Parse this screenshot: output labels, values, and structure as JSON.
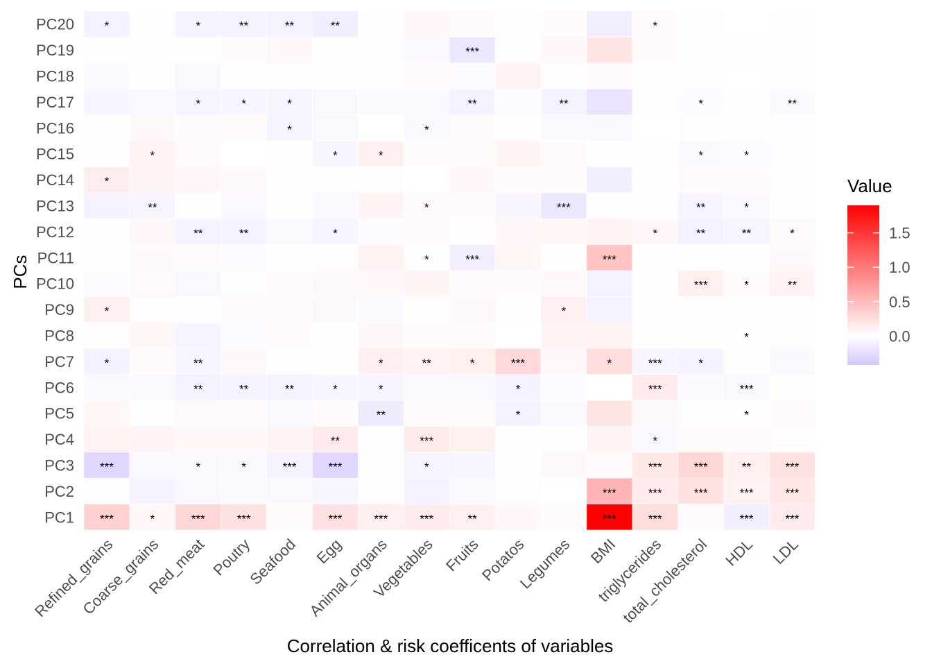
{
  "chart_data": {
    "type": "heatmap",
    "title": "",
    "xlabel": "Correlation & risk coefficents of variables",
    "ylabel": "PCs",
    "x_categories": [
      "Refined_grains",
      "Coarse_grains",
      "Red_meat",
      "Poutry",
      "Seafood",
      "Egg",
      "Animal_organs",
      "Vegetables",
      "Fruits",
      "Potatos",
      "Legumes",
      "BMI",
      "triglycerides",
      "total_cholesterol",
      "HDL",
      "LDL"
    ],
    "y_categories": [
      "PC1",
      "PC2",
      "PC3",
      "PC4",
      "PC5",
      "PC6",
      "PC7",
      "PC8",
      "PC9",
      "PC10",
      "PC11",
      "PC12",
      "PC13",
      "PC14",
      "PC15",
      "PC16",
      "PC17",
      "PC18",
      "PC19",
      "PC20"
    ],
    "rows": [
      {
        "pc": "PC1",
        "values": [
          0.35,
          0.07,
          0.3,
          0.22,
          0.04,
          0.22,
          0.12,
          0.15,
          0.12,
          0.06,
          0.03,
          1.9,
          0.25,
          0.03,
          -0.12,
          0.15
        ],
        "stars": [
          "***",
          "*",
          "***",
          "***",
          "",
          "***",
          "***",
          "***",
          "**",
          "",
          "",
          "***",
          "***",
          "",
          "***",
          "***"
        ]
      },
      {
        "pc": "PC2",
        "values": [
          -0.02,
          -0.09,
          -0.06,
          -0.04,
          -0.05,
          -0.07,
          -0.02,
          -0.1,
          -0.06,
          -0.02,
          0.0,
          0.55,
          0.15,
          0.22,
          0.1,
          0.18
        ],
        "stars": [
          "",
          "",
          "",
          "",
          "",
          "",
          "",
          "",
          "",
          "",
          "",
          "***",
          "***",
          "***",
          "***",
          "***"
        ]
      },
      {
        "pc": "PC3",
        "values": [
          -0.3,
          -0.06,
          -0.05,
          -0.05,
          -0.1,
          -0.3,
          0.02,
          -0.08,
          -0.08,
          0.01,
          0.05,
          0.04,
          0.17,
          0.3,
          0.12,
          0.22
        ],
        "stars": [
          "***",
          "",
          "*",
          "*",
          "***",
          "***",
          "",
          "*",
          "",
          "",
          "",
          "",
          "***",
          "***",
          "**",
          "***"
        ]
      },
      {
        "pc": "PC4",
        "values": [
          0.1,
          0.08,
          0.06,
          0.06,
          0.08,
          0.15,
          -0.02,
          0.15,
          0.11,
          0.01,
          0.02,
          0.1,
          -0.06,
          0.04,
          0.03,
          0.02
        ],
        "stars": [
          "",
          "",
          "",
          "",
          "",
          "**",
          "",
          "***",
          "",
          "",
          "",
          "",
          "*",
          "",
          "",
          ""
        ]
      },
      {
        "pc": "PC5",
        "values": [
          0.07,
          -0.02,
          0.04,
          0.04,
          -0.05,
          0.03,
          -0.15,
          0.03,
          0.03,
          -0.1,
          -0.04,
          0.2,
          0.05,
          0.02,
          -0.02,
          0.03
        ],
        "stars": [
          "",
          "",
          "",
          "",
          "",
          "",
          "**",
          "",
          "",
          "*",
          "",
          "",
          "",
          "",
          "*",
          ""
        ]
      },
      {
        "pc": "PC6",
        "values": [
          -0.04,
          -0.04,
          -0.1,
          -0.09,
          -0.1,
          -0.07,
          -0.08,
          -0.06,
          -0.06,
          -0.1,
          -0.03,
          0.0,
          0.15,
          -0.04,
          -0.05,
          0.02
        ],
        "stars": [
          "",
          "",
          "**",
          "**",
          "**",
          "*",
          "*",
          "",
          "",
          "*",
          "",
          "",
          "***",
          "",
          "***",
          ""
        ]
      },
      {
        "pc": "PC7",
        "values": [
          -0.1,
          0.03,
          -0.08,
          0.05,
          -0.02,
          -0.01,
          0.12,
          0.1,
          0.12,
          0.28,
          0.05,
          0.25,
          -0.07,
          -0.09,
          0.01,
          -0.04
        ],
        "stars": [
          "*",
          "",
          "**",
          "",
          "",
          "",
          "*",
          "**",
          "*",
          "***",
          "",
          "*",
          "***",
          "*",
          "",
          ""
        ]
      },
      {
        "pc": "PC8",
        "values": [
          0.02,
          0.07,
          -0.08,
          -0.03,
          0.03,
          -0.02,
          0.06,
          0.03,
          0.03,
          0.0,
          0.08,
          0.09,
          0.02,
          -0.01,
          0.02,
          0.02
        ],
        "stars": [
          "",
          "",
          "",
          "",
          "",
          "",
          "",
          "",
          "",
          "",
          "",
          "",
          "",
          "",
          "*",
          ""
        ]
      },
      {
        "pc": "PC9",
        "values": [
          0.12,
          0.02,
          0.02,
          0.03,
          0.04,
          0.05,
          -0.04,
          0.02,
          0.05,
          -0.02,
          0.11,
          -0.1,
          0.01,
          0.01,
          0.01,
          0.01
        ],
        "stars": [
          "*",
          "",
          "",
          "",
          "",
          "",
          "",
          "",
          "",
          "",
          "*",
          "",
          "",
          "",
          "",
          ""
        ]
      },
      {
        "pc": "PC10",
        "values": [
          -0.03,
          0.04,
          -0.05,
          0.02,
          0.04,
          0.05,
          0.06,
          0.08,
          0.03,
          0.03,
          0.05,
          -0.1,
          0.01,
          0.12,
          0.03,
          0.1
        ],
        "stars": [
          "",
          "",
          "",
          "",
          "",
          "",
          "",
          "",
          "",
          "",
          "",
          "",
          "",
          "***",
          "*",
          "**"
        ]
      },
      {
        "pc": "PC11",
        "values": [
          0.02,
          0.05,
          0.04,
          -0.03,
          -0.02,
          0.02,
          0.1,
          0.02,
          -0.12,
          0.07,
          0.01,
          0.45,
          0.01,
          0.0,
          0.01,
          0.05
        ],
        "stars": [
          "",
          "",
          "",
          "",
          "",
          "",
          "",
          "*",
          "***",
          "",
          "",
          "***",
          "",
          "",
          "",
          ""
        ]
      },
      {
        "pc": "PC12",
        "values": [
          0.01,
          0.06,
          -0.1,
          -0.09,
          -0.06,
          -0.07,
          -0.03,
          0.04,
          0.02,
          0.06,
          0.07,
          0.09,
          0.06,
          -0.1,
          -0.08,
          0.04
        ],
        "stars": [
          "",
          "",
          "**",
          "**",
          "",
          "*",
          "",
          "",
          "",
          "",
          "",
          "",
          "*",
          "**",
          "**",
          "*"
        ]
      },
      {
        "pc": "PC13",
        "values": [
          -0.1,
          -0.08,
          0.01,
          -0.06,
          0.02,
          -0.05,
          0.09,
          0.04,
          0.03,
          -0.07,
          -0.18,
          -0.01,
          -0.01,
          -0.08,
          -0.04,
          0.01
        ],
        "stars": [
          "",
          "**",
          "",
          "",
          "",
          "",
          "",
          "*",
          "",
          "",
          "***",
          "",
          "",
          "**",
          "*",
          ""
        ]
      },
      {
        "pc": "PC14",
        "values": [
          0.14,
          0.08,
          0.06,
          0.05,
          0.02,
          -0.02,
          0.02,
          0.0,
          0.06,
          0.04,
          0.03,
          -0.12,
          0.02,
          0.04,
          0.03,
          0.02
        ],
        "stars": [
          "*",
          "",
          "",
          "",
          "",
          "",
          "",
          "",
          "",
          "",
          "",
          "",
          "",
          "",
          "",
          ""
        ]
      },
      {
        "pc": "PC15",
        "values": [
          -0.02,
          0.1,
          0.04,
          0.0,
          -0.01,
          -0.07,
          0.11,
          0.04,
          0.04,
          0.08,
          0.04,
          0.02,
          0.01,
          -0.04,
          -0.03,
          -0.02
        ],
        "stars": [
          "",
          "*",
          "",
          "",
          "",
          "*",
          "*",
          "",
          "",
          "",
          "",
          "",
          "",
          "*",
          "*",
          ""
        ]
      },
      {
        "pc": "PC16",
        "values": [
          -0.01,
          0.05,
          0.03,
          0.04,
          -0.08,
          -0.05,
          0.0,
          -0.04,
          0.04,
          0.02,
          -0.05,
          -0.05,
          0.0,
          -0.02,
          -0.02,
          -0.02
        ],
        "stars": [
          "",
          "",
          "",
          "",
          "*",
          "",
          "",
          "*",
          "",
          "",
          "",
          "",
          "",
          "",
          "",
          ""
        ]
      },
      {
        "pc": "PC17",
        "values": [
          -0.07,
          -0.06,
          -0.08,
          -0.07,
          -0.07,
          -0.05,
          -0.04,
          -0.04,
          -0.1,
          -0.03,
          -0.09,
          -0.2,
          0.01,
          -0.03,
          0.01,
          -0.04
        ],
        "stars": [
          "",
          "",
          "*",
          "*",
          "*",
          "",
          "",
          "",
          "**",
          "",
          "**",
          "",
          "",
          "*",
          "",
          "**"
        ]
      },
      {
        "pc": "PC18",
        "values": [
          -0.04,
          0.01,
          -0.06,
          0.01,
          0.02,
          0.02,
          0.02,
          0.03,
          -0.03,
          0.08,
          0.02,
          0.04,
          -0.01,
          -0.01,
          0.0,
          -0.01
        ],
        "stars": [
          "",
          "",
          "",
          "",
          "",
          "",
          "",
          "",
          "",
          "",
          "",
          "",
          "",
          "",
          "",
          ""
        ]
      },
      {
        "pc": "PC19",
        "values": [
          0.01,
          -0.02,
          -0.02,
          0.03,
          0.06,
          0.01,
          -0.02,
          -0.04,
          -0.18,
          -0.02,
          0.06,
          0.2,
          0.04,
          0.02,
          0.02,
          0.01
        ],
        "stars": [
          "",
          "",
          "",
          "",
          "",
          "",
          "",
          "",
          "***",
          "",
          "",
          "",
          "",
          "",
          "",
          ""
        ]
      },
      {
        "pc": "PC20",
        "values": [
          -0.1,
          -0.02,
          -0.09,
          -0.1,
          -0.1,
          -0.12,
          -0.01,
          0.06,
          0.04,
          -0.02,
          0.03,
          -0.12,
          0.03,
          -0.02,
          0.0,
          -0.02
        ],
        "stars": [
          "*",
          "",
          "*",
          "**",
          "**",
          "**",
          "",
          "",
          "",
          "",
          "",
          "",
          "*",
          "",
          "",
          ""
        ]
      }
    ],
    "legend": {
      "title": "Value",
      "ticks": [
        0.0,
        0.5,
        1.0,
        1.5
      ],
      "tick_labels": [
        "0.0",
        "0.5",
        "1.0",
        "1.5"
      ],
      "min": -0.42,
      "max": 1.9,
      "colors": {
        "low": "#d6c4ff",
        "mid": "#ffffff",
        "high": "#ff0000"
      },
      "placement": "right"
    },
    "grid": false
  }
}
